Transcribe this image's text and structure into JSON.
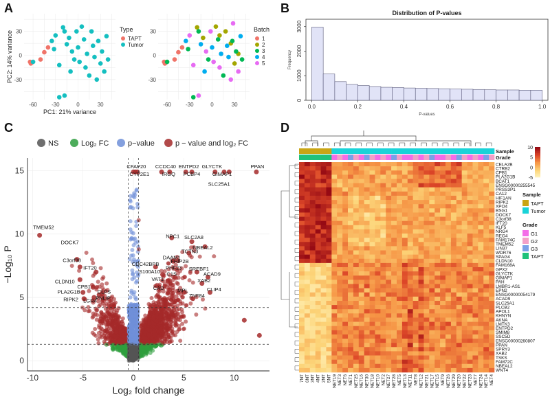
{
  "panel_letters": {
    "a": "A",
    "b": "B",
    "c": "C",
    "d": "D"
  },
  "colors": {
    "tapt": "#f07469",
    "tumor": "#14bfc0",
    "batch1": "#f07469",
    "batch2": "#a3a600",
    "batch3": "#00b854",
    "batch4": "#00adef",
    "batch5": "#e76bf3",
    "ns": "#555555",
    "log2fc": "#2e9e3e",
    "pvalue": "#6f8fd8",
    "pvalue_log2fc": "#a52a2a",
    "hist_fill": "#e1e3f7",
    "grade_g1": "#f46de8",
    "grade_g2": "#f3a0c8",
    "grade_g3": "#7ba0e8",
    "grade_tapt": "#1fc27a",
    "sample_tapt": "#c9a515",
    "sample_tumor": "#1ad3d8"
  },
  "chart_data": [
    {
      "id": "A1",
      "type": "scatter",
      "xlabel": "PC1: 21% variance",
      "ylabel": "PC2: 14% variance",
      "xticks": [
        "-60",
        "-30",
        "0",
        "30"
      ],
      "yticks": [
        "30",
        "0",
        "-30"
      ],
      "xlim": [
        -72,
        50
      ],
      "ylim": [
        -55,
        52
      ],
      "legend": {
        "title": "Type",
        "entries": [
          "TAPT",
          "Tumor"
        ]
      },
      "series": [
        {
          "name": "TAPT",
          "points": [
            [
              -64,
              -8
            ],
            [
              -63,
              -10
            ],
            [
              -62,
              -9
            ],
            [
              -50,
              -5
            ],
            [
              -45,
              4
            ],
            [
              -40,
              10
            ]
          ]
        },
        {
          "name": "Tumor",
          "points": [
            [
              -60,
              -8
            ],
            [
              -35,
              18
            ],
            [
              -30,
              25
            ],
            [
              -32,
              8
            ],
            [
              -25,
              -12
            ],
            [
              -20,
              35
            ],
            [
              -18,
              30
            ],
            [
              -15,
              14
            ],
            [
              -12,
              22
            ],
            [
              -10,
              -20
            ],
            [
              -8,
              5
            ],
            [
              -5,
              -5
            ],
            [
              -2,
              30
            ],
            [
              0,
              10
            ],
            [
              2,
              -8
            ],
            [
              5,
              36
            ],
            [
              8,
              20
            ],
            [
              10,
              -15
            ],
            [
              12,
              2
            ],
            [
              15,
              -25
            ],
            [
              18,
              30
            ],
            [
              20,
              12
            ],
            [
              22,
              -2
            ],
            [
              25,
              -30
            ],
            [
              27,
              18
            ],
            [
              30,
              -10
            ],
            [
              32,
              5
            ],
            [
              35,
              -20
            ],
            [
              38,
              24
            ],
            [
              40,
              -5
            ],
            [
              -25,
              -52
            ],
            [
              -18,
              -50
            ]
          ]
        }
      ]
    },
    {
      "id": "A2",
      "type": "scatter",
      "xlabel": "",
      "ylabel": "",
      "xticks": [
        "-60",
        "-30",
        "0",
        "30"
      ],
      "yticks": [
        "30",
        "0",
        "-30"
      ],
      "xlim": [
        -72,
        50
      ],
      "ylim": [
        -55,
        52
      ],
      "legend": {
        "title": "Batch",
        "entries": [
          "1",
          "2",
          "3",
          "4",
          "5"
        ]
      },
      "series": [
        {
          "name": "1",
          "points": [
            [
              -64,
              -8
            ],
            [
              -63,
              -10
            ],
            [
              -62,
              -9
            ],
            [
              -50,
              -5
            ],
            [
              -45,
              4
            ],
            [
              -40,
              10
            ]
          ]
        },
        {
          "name": "2",
          "points": [
            [
              -20,
              35
            ],
            [
              -12,
              22
            ],
            [
              5,
              36
            ],
            [
              10,
              25
            ],
            [
              18,
              30
            ],
            [
              25,
              15
            ],
            [
              30,
              -10
            ],
            [
              35,
              2
            ]
          ]
        },
        {
          "name": "3",
          "points": [
            [
              -60,
              -8
            ],
            [
              -32,
              8
            ],
            [
              -18,
              30
            ],
            [
              -5,
              -5
            ],
            [
              8,
              20
            ],
            [
              15,
              -25
            ],
            [
              27,
              18
            ],
            [
              32,
              5
            ],
            [
              40,
              -5
            ],
            [
              -25,
              -52
            ]
          ]
        },
        {
          "name": "4",
          "points": [
            [
              -35,
              18
            ],
            [
              -15,
              14
            ],
            [
              0,
              10
            ],
            [
              12,
              2
            ],
            [
              22,
              -2
            ],
            [
              38,
              24
            ],
            [
              -10,
              -20
            ],
            [
              20,
              12
            ]
          ]
        },
        {
          "name": "5",
          "points": [
            [
              -30,
              25
            ],
            [
              -25,
              -12
            ],
            [
              -2,
              30
            ],
            [
              2,
              -8
            ],
            [
              10,
              -15
            ],
            [
              25,
              -30
            ],
            [
              35,
              -20
            ],
            [
              -18,
              -50
            ],
            [
              -8,
              5
            ],
            [
              28,
              40
            ]
          ]
        }
      ]
    },
    {
      "id": "B",
      "type": "bar",
      "title": "Distribution of P-values",
      "xlabel": "P-values",
      "ylabel": "Frequency",
      "xticks": [
        "0.0",
        "0.2",
        "0.4",
        "0.6",
        "0.8",
        "1.0"
      ],
      "yticks": [
        "0",
        "1000",
        "2000",
        "3000"
      ],
      "ylim": [
        0,
        3300
      ],
      "bin_width": 0.05,
      "bins": [
        0.0,
        0.05,
        0.1,
        0.15,
        0.2,
        0.25,
        0.3,
        0.35,
        0.4,
        0.45,
        0.5,
        0.55,
        0.6,
        0.65,
        0.7,
        0.75,
        0.8,
        0.85,
        0.9,
        0.95
      ],
      "values": [
        2980,
        1070,
        760,
        650,
        600,
        560,
        530,
        520,
        500,
        490,
        480,
        470,
        460,
        450,
        440,
        430,
        420,
        420,
        410,
        410
      ]
    },
    {
      "id": "C",
      "type": "scatter",
      "xlabel": "Log₂ fold change",
      "ylabel": "−Log₁₀ P",
      "xticks": [
        "-10",
        "-5",
        "0",
        "5",
        "10"
      ],
      "yticks": [
        "0",
        "5",
        "10",
        "15"
      ],
      "xlim": [
        -10.5,
        13.5
      ],
      "ylim": [
        -0.8,
        16
      ],
      "legend": {
        "entries": [
          {
            "key": "ns",
            "label": "NS"
          },
          {
            "key": "log2fc",
            "label": "Log₂ FC"
          },
          {
            "key": "pvalue",
            "label": "p−value"
          },
          {
            "key": "pvalue_log2fc",
            "label": "p − value and log₂ FC"
          }
        ]
      },
      "thresholds": {
        "fc": [
          -0.5,
          0.5
        ],
        "p": [
          1.3,
          4.2
        ]
      },
      "labels": [
        {
          "text": "CFAP20",
          "x": 0.3,
          "y": 15.2
        },
        {
          "text": "CYP2E1",
          "x": 0.6,
          "y": 14.6
        },
        {
          "text": "CCDC40",
          "x": 3.2,
          "y": 15.2
        },
        {
          "text": "IRGQ",
          "x": 3.5,
          "y": 14.6
        },
        {
          "text": "ENTPD2",
          "x": 5.5,
          "y": 15.2
        },
        {
          "text": "PCBP4",
          "x": 5.8,
          "y": 14.6
        },
        {
          "text": "GLYCTK",
          "x": 7.8,
          "y": 15.2
        },
        {
          "text": "GIMAP1",
          "x": 8.8,
          "y": 14.6
        },
        {
          "text": "PPAN",
          "x": 12.3,
          "y": 15.2
        },
        {
          "text": "SLC25A1",
          "x": 8.5,
          "y": 13.8
        },
        {
          "text": "TMEM52",
          "x": -8.9,
          "y": 10.4
        },
        {
          "text": "DOCK7",
          "x": -6.3,
          "y": 9.2
        },
        {
          "text": "C3orf38",
          "x": -6.1,
          "y": 7.8
        },
        {
          "text": "IFT20",
          "x": -4.3,
          "y": 7.2
        },
        {
          "text": "CLDN10",
          "x": -6.8,
          "y": 6.1
        },
        {
          "text": "CPB1",
          "x": -4.9,
          "y": 5.7
        },
        {
          "text": "PLA2G1B",
          "x": -6.4,
          "y": 5.3
        },
        {
          "text": "CLPS",
          "x": -2.9,
          "y": 5.3
        },
        {
          "text": "PNLIP",
          "x": -3.0,
          "y": 4.8
        },
        {
          "text": "RIPK2",
          "x": -6.2,
          "y": 4.7
        },
        {
          "text": "LGR4",
          "x": -4.3,
          "y": 4.6
        },
        {
          "text": "NPC1",
          "x": 3.9,
          "y": 9.7
        },
        {
          "text": "SLC2A8",
          "x": 6.0,
          "y": 9.6
        },
        {
          "text": "NBEAL2",
          "x": 6.9,
          "y": 8.8
        },
        {
          "text": "TCTN3",
          "x": 5.6,
          "y": 8.5
        },
        {
          "text": "DAAM1",
          "x": 3.8,
          "y": 8.0
        },
        {
          "text": "FHIP2B",
          "x": 4.6,
          "y": 7.7
        },
        {
          "text": "CDC42BPB",
          "x": 1.2,
          "y": 7.5
        },
        {
          "text": "PHF23",
          "x": 4.0,
          "y": 7.2
        },
        {
          "text": "SREBF1",
          "x": 6.5,
          "y": 7.1
        },
        {
          "text": "S100A10",
          "x": 1.6,
          "y": 6.9
        },
        {
          "text": "C1S",
          "x": 3.8,
          "y": 6.7
        },
        {
          "text": "ACAD9",
          "x": 7.8,
          "y": 6.7
        },
        {
          "text": "VAT1",
          "x": 2.4,
          "y": 6.3
        },
        {
          "text": "XAB2",
          "x": 7.0,
          "y": 6.2
        },
        {
          "text": "CAD",
          "x": 2.5,
          "y": 5.6
        },
        {
          "text": "MPL",
          "x": 4.9,
          "y": 5.4
        },
        {
          "text": "CLIP4",
          "x": 8.0,
          "y": 5.5
        },
        {
          "text": "ZNF84",
          "x": 6.3,
          "y": 5.0
        }
      ],
      "highlight_points": [
        [
          -9.3,
          9.9
        ],
        [
          -5.6,
          8.0
        ],
        [
          -5.3,
          7.4
        ],
        [
          -3.7,
          7.0
        ],
        [
          -5.3,
          6.4
        ],
        [
          -4.0,
          5.8
        ],
        [
          -5.0,
          5.4
        ],
        [
          -3.1,
          5.3
        ],
        [
          -3.4,
          5.2
        ],
        [
          -4.9,
          4.9
        ],
        [
          -3.9,
          5.0
        ],
        [
          0.0,
          14.9
        ],
        [
          0.2,
          14.9
        ],
        [
          0.4,
          14.9
        ],
        [
          2.8,
          14.9
        ],
        [
          3.6,
          14.9
        ],
        [
          5.2,
          14.9
        ],
        [
          5.8,
          14.9
        ],
        [
          8.1,
          14.9
        ],
        [
          9.0,
          14.9
        ],
        [
          9.5,
          14.9
        ],
        [
          12.2,
          14.9
        ],
        [
          3.8,
          9.7
        ],
        [
          5.8,
          9.4
        ],
        [
          7.1,
          9.0
        ],
        [
          5.5,
          8.5
        ],
        [
          4.0,
          7.9
        ],
        [
          4.4,
          7.9
        ],
        [
          2.2,
          7.4
        ],
        [
          4.3,
          7.2
        ],
        [
          6.3,
          7.0
        ],
        [
          2.9,
          6.8
        ],
        [
          4.1,
          6.6
        ],
        [
          7.4,
          6.6
        ],
        [
          3.4,
          6.3
        ],
        [
          6.8,
          6.1
        ],
        [
          3.6,
          5.6
        ],
        [
          5.0,
          5.4
        ],
        [
          7.6,
          5.4
        ],
        [
          5.9,
          4.9
        ],
        [
          12.5,
          2.0
        ],
        [
          11.0,
          3.2
        ]
      ]
    },
    {
      "id": "D",
      "type": "heatmap",
      "annotation_labels": {
        "sample": "Sample",
        "grade": "Grade"
      },
      "scale": {
        "max": 10,
        "ticks": [
          "10",
          "5",
          "0",
          "-5"
        ]
      },
      "legend_sample": {
        "title": "Sample",
        "entries": [
          "TAPT",
          "Tumor"
        ]
      },
      "legend_grade": {
        "title": "Grade",
        "entries": [
          "G1",
          "G2",
          "G3",
          "TAPT"
        ]
      },
      "row_labels": [
        "CELA2B",
        "CTRB2",
        "CPB1",
        "PLA2G1B",
        "BCAT1",
        "ENSG00000255545",
        "PRSS3P1",
        "CA12",
        "HIF1AN",
        "RIPK2",
        "XPO4",
        "BSG1",
        "DOCK7",
        "C3orf38",
        "IFT20",
        "KLF5",
        "NRG4",
        "REG4",
        "FAM174C",
        "TMEM52",
        "LIN37",
        "WDR76",
        "SPAG4",
        "CLDN10",
        "FAM168A",
        "GPX2",
        "GLYCTK",
        "GIMAP1",
        "PAH",
        "LMBR1-AS1",
        "EPN2",
        "ENSG00000054179",
        "ACAD9",
        "SLC25A1",
        "PLCB2",
        "APOL1",
        "KHNYN",
        "AKNA",
        "LMTK3",
        "ENTPD2",
        "SMIM8",
        "SSC5D",
        "ENSG00000260807",
        "PPAN",
        "SPRY3",
        "XAB2",
        "TSKS",
        "FAM72C",
        "NBEAL2",
        "WNT4"
      ],
      "col_labels": [
        "7NT",
        "6NT",
        "3NT",
        "4NT",
        "2NT",
        "5NT",
        "NET19",
        "NET3",
        "NET6",
        "NET1",
        "NET25",
        "NET16",
        "NET30",
        "NET18",
        "NET10",
        "NET2",
        "NET27",
        "NET28",
        "NET5",
        "NET13",
        "NET11",
        "NET8",
        "NET12",
        "NET21",
        "NET17",
        "NET15",
        "NET9",
        "NET26",
        "NET29",
        "NET20",
        "NET22",
        "NET23",
        "NET7",
        "NET24",
        "NET14",
        "NET4"
      ],
      "sample_groups": [
        "TAPT",
        "TAPT",
        "TAPT",
        "TAPT",
        "TAPT",
        "TAPT",
        "Tumor",
        "Tumor",
        "Tumor",
        "Tumor",
        "Tumor",
        "Tumor",
        "Tumor",
        "Tumor",
        "Tumor",
        "Tumor",
        "Tumor",
        "Tumor",
        "Tumor",
        "Tumor",
        "Tumor",
        "Tumor",
        "Tumor",
        "Tumor",
        "Tumor",
        "Tumor",
        "Tumor",
        "Tumor",
        "Tumor",
        "Tumor",
        "Tumor",
        "Tumor",
        "Tumor",
        "Tumor",
        "Tumor",
        "Tumor"
      ],
      "grade_groups": [
        "TAPT",
        "TAPT",
        "TAPT",
        "TAPT",
        "TAPT",
        "TAPT",
        "G1",
        "G2",
        "G1",
        "G3",
        "G2",
        "G1",
        "G3",
        "G2",
        "G1",
        "G2",
        "G1",
        "G3",
        "G2",
        "G1",
        "G1",
        "G2",
        "G1",
        "G2",
        "G3",
        "G1",
        "G1",
        "G2",
        "G1",
        "G3",
        "G2",
        "G1",
        "G2",
        "G1",
        "G3",
        "G2"
      ]
    }
  ]
}
